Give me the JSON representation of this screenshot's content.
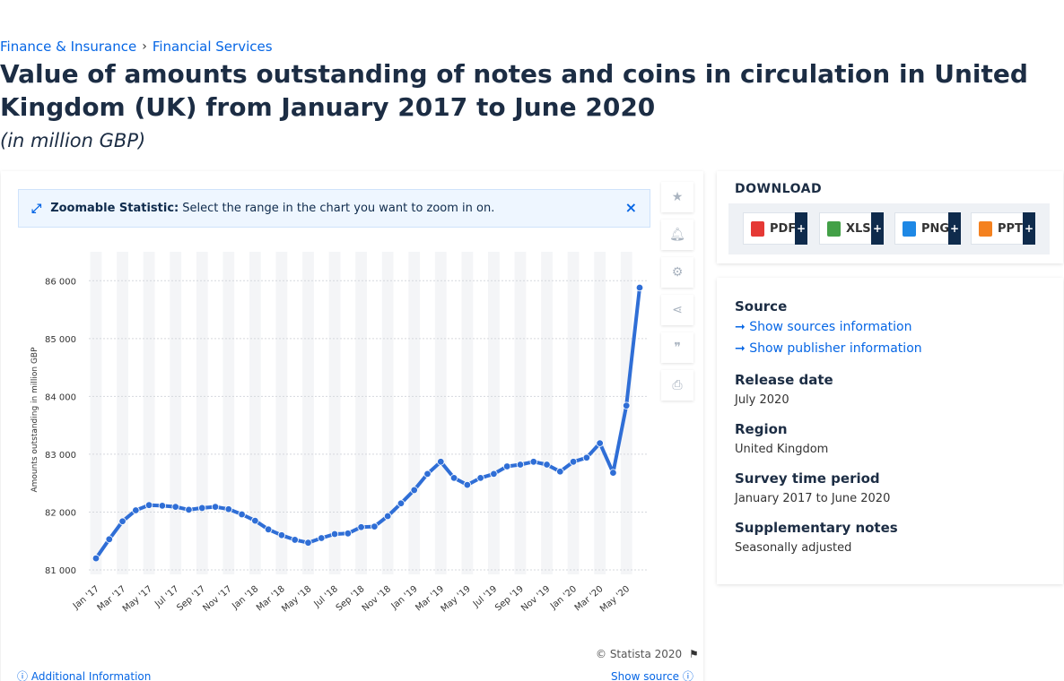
{
  "breadcrumb": {
    "item1": "Finance & Insurance",
    "separator": "›",
    "item2": "Financial Services"
  },
  "title": "Value of amounts outstanding of notes and coins in circulation in United Kingdom (UK) from January 2017 to June 2020",
  "subtitle": "(in million GBP)",
  "zoom_banner": {
    "label": "Zoomable Statistic:",
    "text": "Select the range in the chart you want to zoom in on.",
    "close": "×"
  },
  "tools": [
    "star-icon",
    "bell-icon",
    "gear-icon",
    "share-icon",
    "quote-icon",
    "print-icon"
  ],
  "copyright": "© Statista 2020",
  "additional_info": "Additional Information",
  "show_source": "Show source",
  "download": {
    "title": "DOWNLOAD",
    "buttons": [
      {
        "label": "PDF",
        "color": "#e53935"
      },
      {
        "label": "XLS",
        "color": "#43a047"
      },
      {
        "label": "PNG",
        "color": "#1e88e5"
      },
      {
        "label": "PPT",
        "color": "#f4811f"
      }
    ],
    "plus": "+"
  },
  "info": {
    "source_h": "Source",
    "source_link": "Show sources information",
    "publisher_link": "Show publisher information",
    "release_h": "Release date",
    "release_v": "July 2020",
    "region_h": "Region",
    "region_v": "United Kingdom",
    "survey_h": "Survey time period",
    "survey_v": "January 2017 to June 2020",
    "notes_h": "Supplementary notes",
    "notes_v": "Seasonally adjusted"
  },
  "chart_data": {
    "type": "line",
    "ylabel": "Amounts outstanding in million GBP",
    "ylim": [
      81000,
      86500
    ],
    "yticks": [
      81000,
      82000,
      83000,
      84000,
      85000,
      86000
    ],
    "ytick_labels": [
      "81 000",
      "82 000",
      "83 000",
      "84 000",
      "85 000",
      "86 000"
    ],
    "x": [
      "Jan '17",
      "Feb '17",
      "Mar '17",
      "Apr '17",
      "May '17",
      "Jun '17",
      "Jul '17",
      "Aug '17",
      "Sep '17",
      "Oct '17",
      "Nov '17",
      "Dec '17",
      "Jan '18",
      "Feb '18",
      "Mar '18",
      "Apr '18",
      "May '18",
      "Jun '18",
      "Jul '18",
      "Aug '18",
      "Sep '18",
      "Oct '18",
      "Nov '18",
      "Dec '18",
      "Jan '19",
      "Feb '19",
      "Mar '19",
      "Apr '19",
      "May '19",
      "Jun '19",
      "Jul '19",
      "Aug '19",
      "Sep '19",
      "Oct '19",
      "Nov '19",
      "Dec '19",
      "Jan '20",
      "Feb '20",
      "Mar '20",
      "Apr '20",
      "May '20",
      "Jun '20"
    ],
    "xtick_labels": [
      "Jan '17",
      "Mar '17",
      "May '17",
      "Jul '17",
      "Sep '17",
      "Nov '17",
      "Jan '18",
      "Mar '18",
      "May '18",
      "Jul '18",
      "Sep '18",
      "Nov '18",
      "Jan '19",
      "Mar '19",
      "May '19",
      "Jul '19",
      "Sep '19",
      "Nov '19",
      "Jan '20",
      "Mar '20",
      "May '20"
    ],
    "values": [
      81200,
      81530,
      81840,
      82030,
      82120,
      82110,
      82090,
      82040,
      82070,
      82090,
      82050,
      81960,
      81850,
      81700,
      81600,
      81520,
      81470,
      81550,
      81620,
      81630,
      81740,
      81750,
      81930,
      82150,
      82380,
      82660,
      82870,
      82590,
      82470,
      82590,
      82660,
      82790,
      82820,
      82870,
      82820,
      82700,
      82870,
      82940,
      83190,
      82680,
      83840,
      85880
    ],
    "color": "#2f6ed6",
    "grid": true
  }
}
